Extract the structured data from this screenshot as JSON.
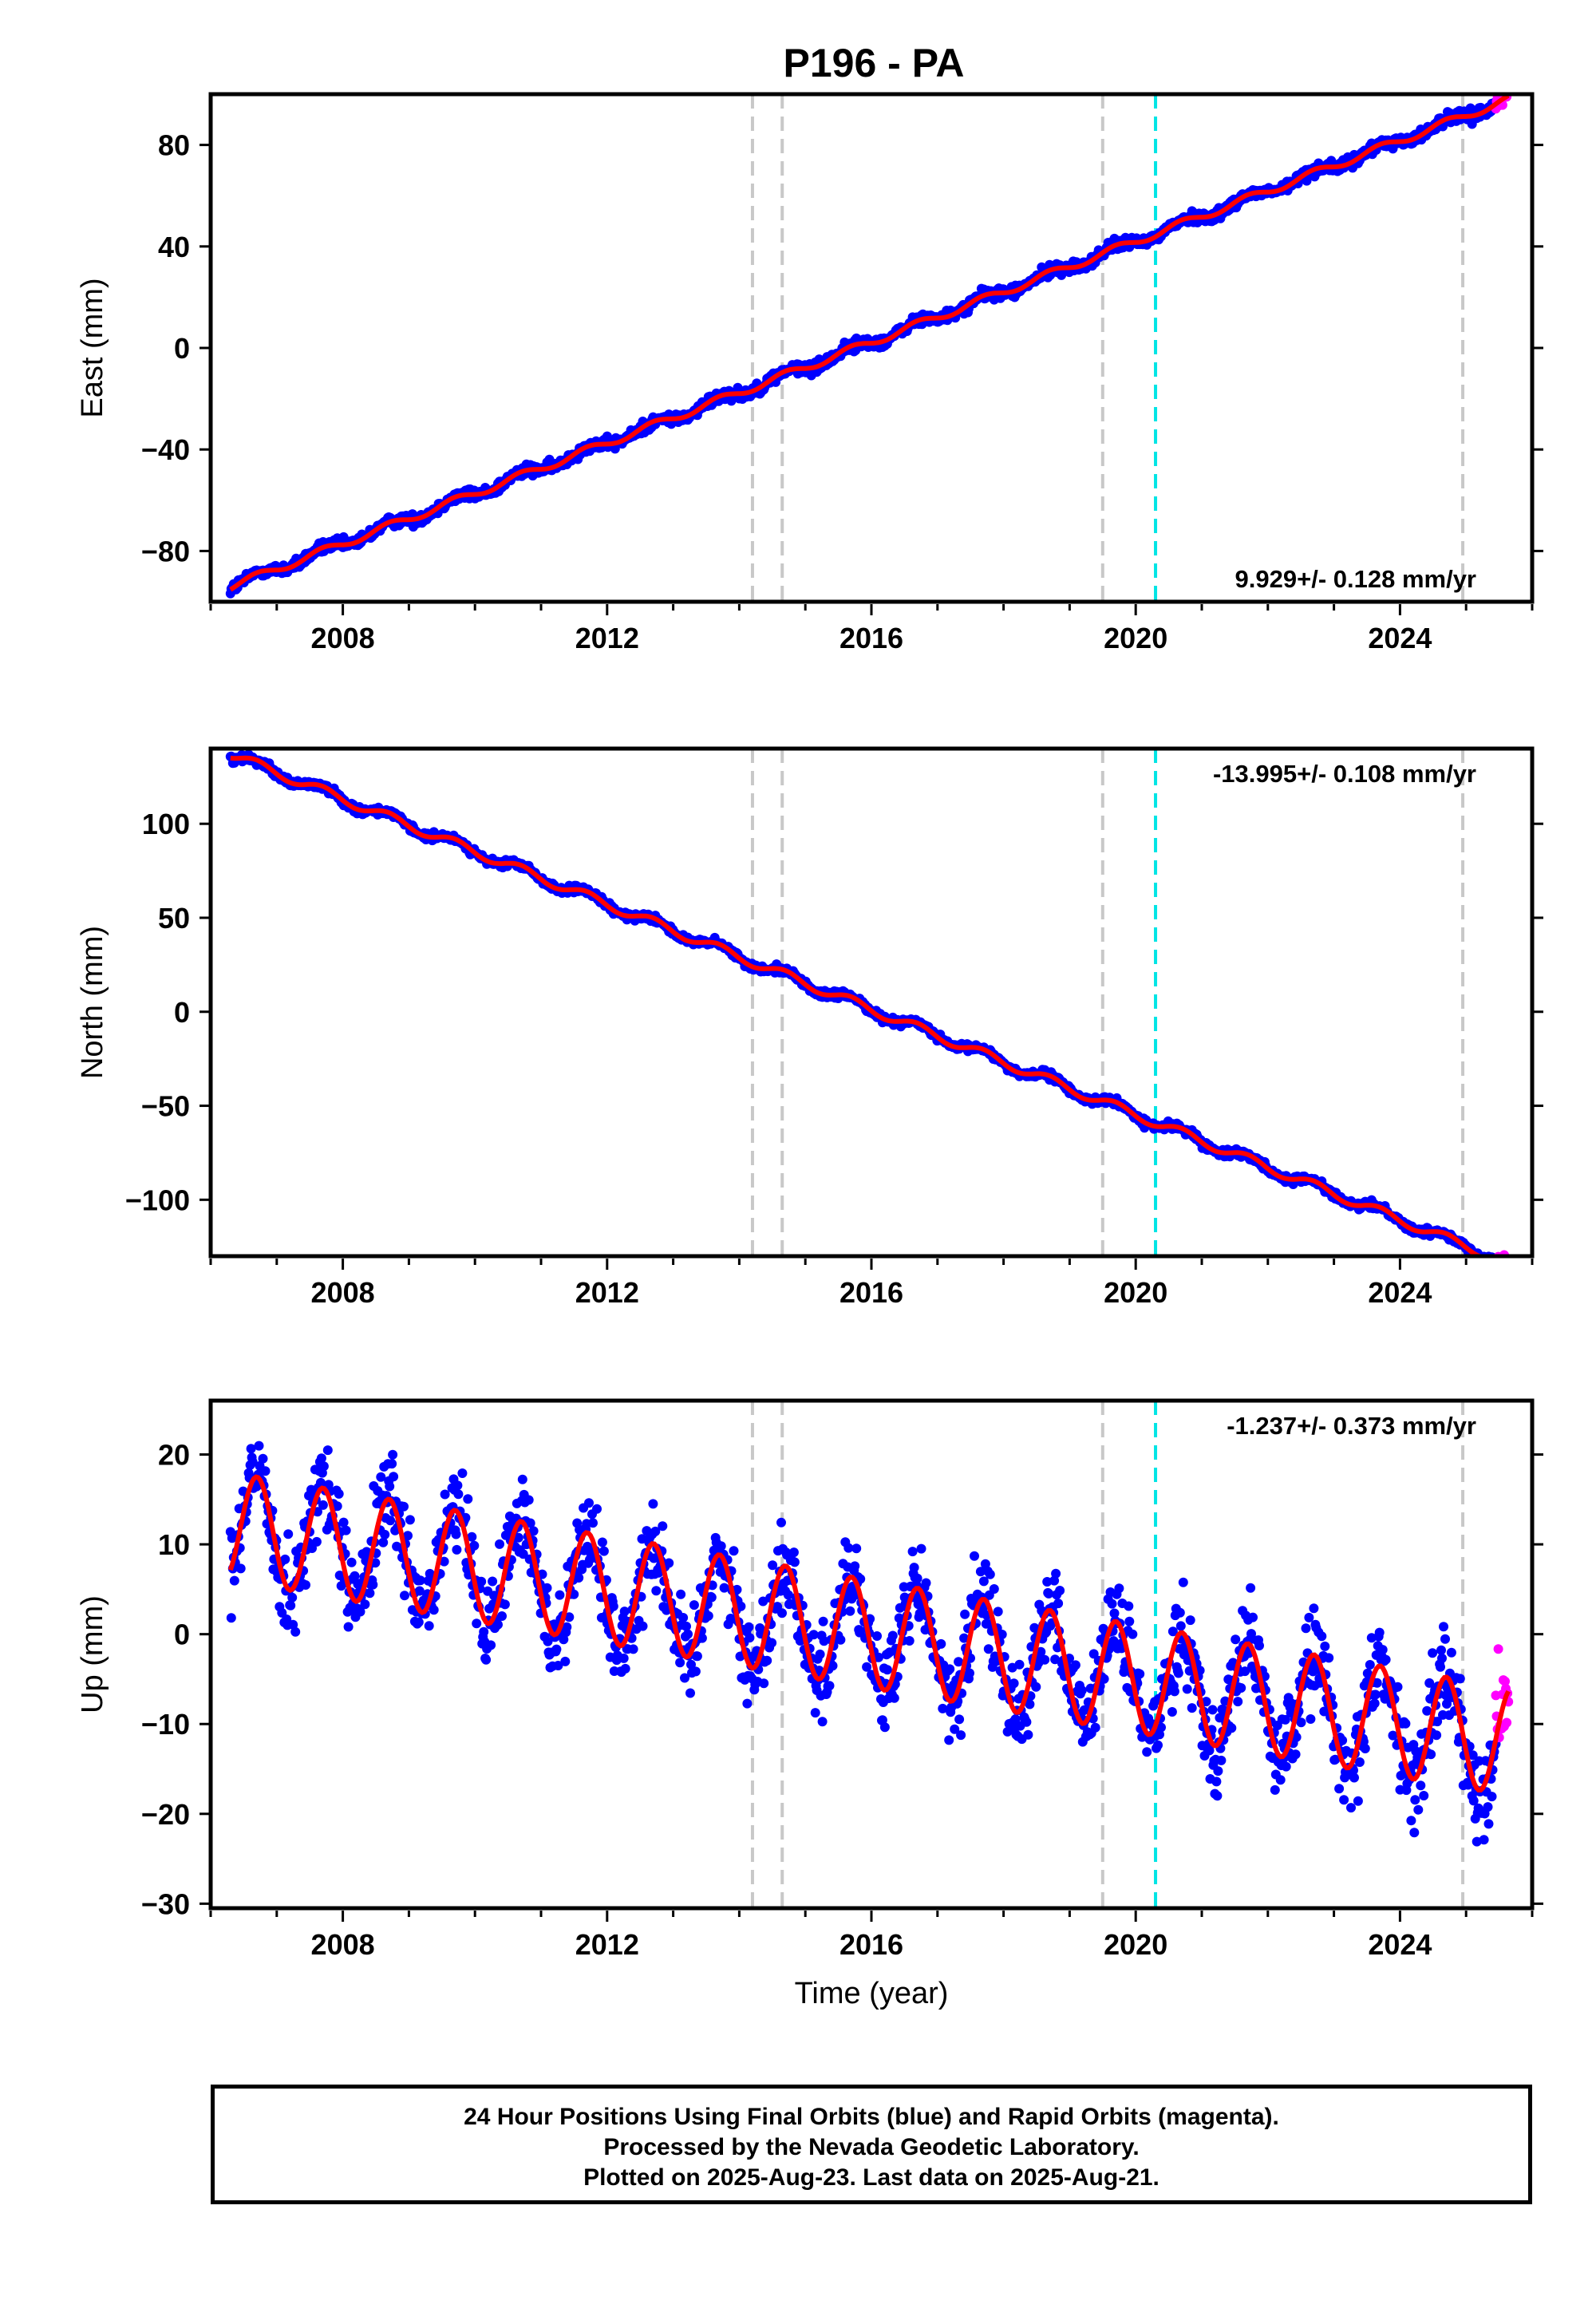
{
  "title": "P196 - PA",
  "xlabel": "Time (year)",
  "caption": {
    "line1": "24 Hour Positions Using Final Orbits (blue) and Rapid Orbits (magenta).",
    "line2": "Processed by the Nevada Geodetic Laboratory.",
    "line3": "Plotted on 2025-Aug-23. Last data on 2025-Aug-21."
  },
  "colors": {
    "final_orbits": "#0000ff",
    "rapid_orbits": "#ff00ff",
    "model": "#ff0000",
    "event_line": "#c8c8c8",
    "antenna_line": "#00e5e5"
  },
  "chart_data": [
    {
      "type": "scatter",
      "component": "east",
      "ylabel": "East (mm)",
      "xlim": [
        2006.0,
        2026.0
      ],
      "ylim": [
        -100,
        100
      ],
      "xticks": [
        2008,
        2012,
        2016,
        2020,
        2024
      ],
      "yticks": [
        -80,
        -40,
        0,
        40,
        80
      ],
      "rate_label": "9.929+/- 0.128 mm/yr",
      "rate_position": "bottom-right",
      "start": {
        "x": 2006.3,
        "y": -94
      },
      "velocity": 9.929,
      "annual_amp": 1.5,
      "noise": 1.6,
      "series": [
        {
          "name": "Final Orbits (blue)",
          "x_range": [
            2006.3,
            2025.45
          ]
        },
        {
          "name": "Rapid Orbits (magenta)",
          "x_range": [
            2025.45,
            2025.64
          ]
        }
      ],
      "event_lines": [
        2014.2,
        2014.65,
        2019.5,
        2024.95
      ],
      "antenna_lines": [
        2020.3
      ],
      "grid": false
    },
    {
      "type": "scatter",
      "component": "north",
      "ylabel": "North (mm)",
      "xlim": [
        2006.0,
        2026.0
      ],
      "ylim": [
        -130,
        140
      ],
      "xticks": [
        2008,
        2012,
        2016,
        2020,
        2024
      ],
      "yticks": [
        -100,
        -50,
        0,
        50,
        100
      ],
      "rate_label": "-13.995+/- 0.108 mm/yr",
      "rate_position": "top-right",
      "start": {
        "x": 2006.3,
        "y": 137
      },
      "velocity": -13.995,
      "annual_amp": 2.5,
      "noise": 1.4,
      "series": [
        {
          "name": "Final Orbits (blue)",
          "x_range": [
            2006.3,
            2025.45
          ]
        },
        {
          "name": "Rapid Orbits (magenta)",
          "x_range": [
            2025.45,
            2025.64
          ]
        }
      ],
      "event_lines": [
        2014.2,
        2014.65,
        2019.5,
        2024.95
      ],
      "antenna_lines": [
        2020.3
      ],
      "grid": false
    },
    {
      "type": "scatter",
      "component": "up",
      "ylabel": "Up (mm)",
      "xlim": [
        2006.0,
        2026.0
      ],
      "ylim": [
        -30.5,
        26
      ],
      "xticks": [
        2008,
        2012,
        2016,
        2020,
        2024
      ],
      "yticks": [
        -30,
        -20,
        -10,
        0,
        10,
        20
      ],
      "rate_label": "-1.237+/- 0.373 mm/yr",
      "rate_position": "top-right",
      "start": {
        "x": 2006.3,
        "y": 12
      },
      "velocity": -1.237,
      "annual_amp": 6.0,
      "noise": 3.5,
      "series": [
        {
          "name": "Final Orbits (blue)",
          "x_range": [
            2006.3,
            2025.45
          ]
        },
        {
          "name": "Rapid Orbits (magenta)",
          "x_range": [
            2025.45,
            2025.64
          ]
        }
      ],
      "event_lines": [
        2014.2,
        2014.65,
        2019.5,
        2024.95
      ],
      "antenna_lines": [
        2020.3
      ],
      "grid": false
    }
  ]
}
